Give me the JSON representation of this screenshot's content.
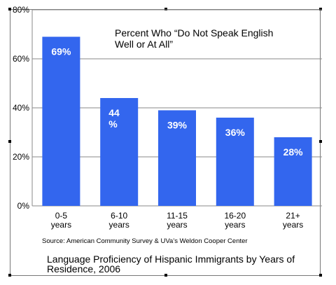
{
  "chart_data": {
    "type": "bar",
    "title_lines": [
      "Percent Who “Do Not Speak English",
      "Well or At All”"
    ],
    "categories": [
      [
        "0-5",
        "years"
      ],
      [
        "6-10",
        "years"
      ],
      [
        "11-15",
        "years"
      ],
      [
        "16-20",
        "years"
      ],
      [
        "21+",
        "years"
      ]
    ],
    "values": [
      69,
      44,
      39,
      36,
      28
    ],
    "data_labels": [
      [
        "69%"
      ],
      [
        "44",
        "%"
      ],
      [
        "39%"
      ],
      [
        "36%"
      ],
      [
        "28%"
      ]
    ],
    "y_tick_labels": [
      "0%",
      "20%",
      "40%",
      "60%",
      "80%"
    ],
    "y_ticks": [
      0,
      20,
      40,
      60,
      80
    ],
    "ylim": [
      0,
      80
    ],
    "grid": true,
    "bar_color": "#3366ee",
    "xlabel": "",
    "ylabel": ""
  },
  "source": "Source: American Community Survey & UVa’s Weldon Cooper Center",
  "caption": "Language Proficiency of Hispanic Immigrants by Years of Residence, 2006"
}
